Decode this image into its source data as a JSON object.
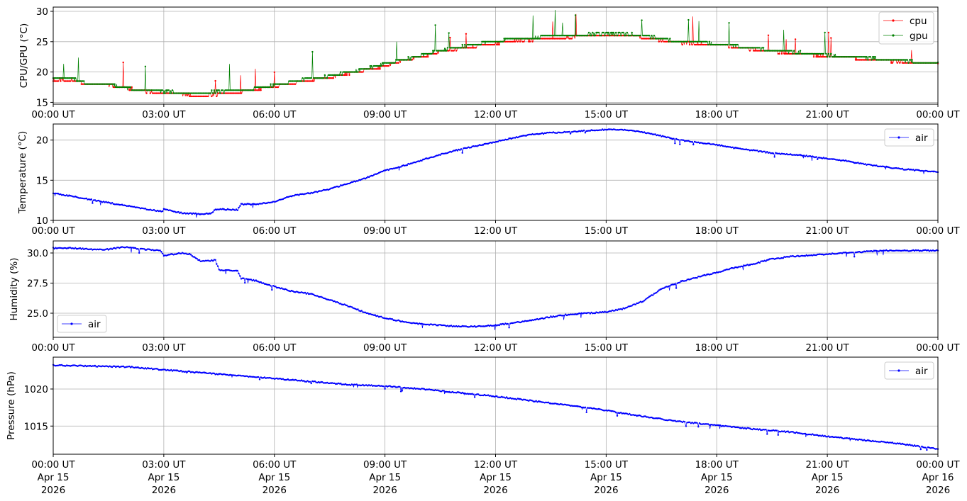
{
  "chart_data": [
    {
      "type": "line",
      "ylabel": "CPU/GPU (°C)",
      "ylim": [
        14.7,
        30.7
      ],
      "yticks": [
        15,
        20,
        25,
        30
      ],
      "ytick_labels": [
        "15",
        "20",
        "25",
        "30"
      ],
      "xlim": [
        0,
        24
      ],
      "xticks": [
        0,
        3,
        6,
        9,
        12,
        15,
        18,
        21,
        24
      ],
      "xtick_labels": [
        "00:00 UT",
        "03:00 UT",
        "06:00 UT",
        "09:00 UT",
        "12:00 UT",
        "15:00 UT",
        "18:00 UT",
        "21:00 UT",
        "00:00 UT"
      ],
      "grid": true,
      "legend": "top-right",
      "series": [
        {
          "name": "cpu",
          "color": "#ff0000",
          "x": [
            0,
            0.5,
            0.9,
            1.5,
            2.0,
            2.5,
            3.0,
            3.5,
            4.0,
            4.5,
            5.0,
            5.5,
            6.0,
            6.5,
            7.0,
            7.5,
            8.0,
            8.5,
            9.0,
            9.5,
            10.0,
            10.5,
            11.0,
            11.5,
            12.0,
            12.5,
            13.0,
            13.5,
            14.0,
            14.5,
            15.0,
            15.5,
            16.0,
            16.5,
            17.0,
            17.5,
            18.0,
            18.5,
            19.0,
            19.5,
            20.0,
            20.5,
            21.0,
            21.5,
            22.0,
            22.5,
            23.0,
            23.5,
            24
          ],
          "values": [
            18.7,
            18.7,
            18,
            17.8,
            17.3,
            16.8,
            16.6,
            16.3,
            16.1,
            16.3,
            16.6,
            17.1,
            17.6,
            18.2,
            18.7,
            19.1,
            19.8,
            20.3,
            21.0,
            21.9,
            22.5,
            23.3,
            23.8,
            24.3,
            24.7,
            25.2,
            25.3,
            25.6,
            25.7,
            26.0,
            26.1,
            26.1,
            25.7,
            25.2,
            24.8,
            24.7,
            24.5,
            24.1,
            23.7,
            23.4,
            23.1,
            22.9,
            22.6,
            22.4,
            22.1,
            21.9,
            21.7,
            21.4,
            21.4
          ]
        },
        {
          "name": "gpu",
          "color": "#008000",
          "x": [
            0,
            0.5,
            0.9,
            1.5,
            2.0,
            2.5,
            3.0,
            3.5,
            4.0,
            4.5,
            5.0,
            5.5,
            6.0,
            6.5,
            7.0,
            7.5,
            8.0,
            8.5,
            9.0,
            9.5,
            10.0,
            10.5,
            11.0,
            11.5,
            12.0,
            12.5,
            13.0,
            13.5,
            14.0,
            14.5,
            15.0,
            15.5,
            16.0,
            16.5,
            17.0,
            17.5,
            18.0,
            18.5,
            19.0,
            19.5,
            20.0,
            20.5,
            21.0,
            21.5,
            22.0,
            22.5,
            23.0,
            23.5,
            24
          ],
          "values": [
            19.0,
            19.0,
            18.1,
            18.0,
            17.3,
            16.9,
            16.8,
            16.6,
            16.5,
            16.8,
            16.9,
            17.3,
            17.8,
            18.4,
            19.0,
            19.3,
            20.0,
            20.5,
            21.4,
            22.0,
            22.7,
            23.6,
            24.1,
            24.6,
            25.0,
            25.5,
            25.7,
            25.9,
            26.0,
            26.2,
            26.3,
            26.3,
            26.0,
            25.5,
            25.0,
            24.9,
            24.6,
            24.3,
            23.9,
            23.6,
            23.3,
            23.1,
            22.8,
            22.6,
            22.3,
            22.1,
            21.9,
            21.6,
            21.6
          ]
        }
      ]
    },
    {
      "type": "line",
      "ylabel": "Temperature (°C)",
      "ylim": [
        10,
        22
      ],
      "yticks": [
        10,
        15,
        20
      ],
      "ytick_labels": [
        "10",
        "15",
        "20"
      ],
      "xlim": [
        0,
        24
      ],
      "xticks": [
        0,
        3,
        6,
        9,
        12,
        15,
        18,
        21,
        24
      ],
      "xtick_labels": [
        "00:00 UT",
        "03:00 UT",
        "06:00 UT",
        "09:00 UT",
        "12:00 UT",
        "15:00 UT",
        "18:00 UT",
        "21:00 UT",
        "00:00 UT"
      ],
      "grid": true,
      "legend": "top-right",
      "series": [
        {
          "name": "air",
          "color": "#0000ff",
          "x": [
            0,
            0.5,
            1.0,
            1.5,
            2.0,
            2.5,
            2.95,
            3.0,
            3.5,
            4.0,
            4.3,
            4.4,
            5.0,
            5.1,
            5.5,
            6.0,
            6.5,
            7.0,
            7.5,
            8.0,
            8.5,
            9.0,
            9.5,
            10.0,
            10.5,
            11.0,
            11.5,
            12.0,
            12.5,
            13.0,
            13.5,
            14.0,
            14.5,
            15.0,
            15.5,
            16.0,
            16.5,
            17.0,
            17.5,
            18.0,
            18.5,
            19.0,
            19.5,
            20.0,
            20.5,
            21.0,
            21.5,
            22.0,
            22.5,
            23.0,
            23.5,
            24
          ],
          "values": [
            13.4,
            13.0,
            12.6,
            12.2,
            11.8,
            11.4,
            11.1,
            11.4,
            10.9,
            10.8,
            10.9,
            11.4,
            11.3,
            12.0,
            12.0,
            12.3,
            13.1,
            13.4,
            13.9,
            14.6,
            15.3,
            16.2,
            16.8,
            17.5,
            18.2,
            18.8,
            19.3,
            19.8,
            20.3,
            20.7,
            20.9,
            21.0,
            21.2,
            21.3,
            21.3,
            21.0,
            20.5,
            20.0,
            19.7,
            19.4,
            19.0,
            18.7,
            18.4,
            18.2,
            18.0,
            17.7,
            17.4,
            17.0,
            16.7,
            16.4,
            16.2,
            16.0
          ]
        }
      ]
    },
    {
      "type": "line",
      "ylabel": "Humidity (%)",
      "ylim": [
        23,
        31
      ],
      "yticks": [
        25.0,
        27.5,
        30.0
      ],
      "ytick_labels": [
        "25.0",
        "27.5",
        "30.0"
      ],
      "xlim": [
        0,
        24
      ],
      "xticks": [
        0,
        3,
        6,
        9,
        12,
        15,
        18,
        21,
        24
      ],
      "xtick_labels": [
        "00:00 UT",
        "03:00 UT",
        "06:00 UT",
        "09:00 UT",
        "12:00 UT",
        "15:00 UT",
        "18:00 UT",
        "21:00 UT",
        "00:00 UT"
      ],
      "grid": true,
      "legend": "lower-left",
      "series": [
        {
          "name": "air",
          "color": "#0000ff",
          "x": [
            0,
            0.5,
            1.0,
            1.5,
            1.9,
            2.5,
            2.9,
            3.0,
            3.5,
            3.7,
            4.0,
            4.4,
            4.5,
            5.0,
            5.1,
            5.5,
            6.0,
            6.5,
            7.0,
            7.5,
            8.0,
            8.5,
            9.0,
            9.5,
            10.0,
            10.5,
            11.0,
            11.5,
            12.0,
            12.5,
            13.0,
            13.5,
            14.0,
            14.5,
            15.0,
            15.5,
            16.0,
            16.5,
            17.0,
            17.5,
            18.0,
            18.5,
            19.0,
            19.5,
            20.0,
            20.5,
            21.0,
            21.5,
            22.0,
            22.5,
            23.0,
            23.5,
            24
          ],
          "values": [
            30.4,
            30.4,
            30.3,
            30.3,
            30.5,
            30.3,
            30.2,
            29.8,
            30.0,
            29.9,
            29.3,
            29.4,
            28.6,
            28.5,
            27.9,
            27.7,
            27.2,
            26.8,
            26.6,
            26.1,
            25.6,
            25.0,
            24.6,
            24.3,
            24.1,
            24.0,
            23.9,
            23.9,
            24.0,
            24.2,
            24.4,
            24.7,
            24.9,
            25.0,
            25.1,
            25.4,
            26.0,
            27.0,
            27.6,
            28.0,
            28.4,
            28.8,
            29.1,
            29.5,
            29.7,
            29.8,
            29.9,
            30.0,
            30.1,
            30.2,
            30.2,
            30.2,
            30.2
          ]
        }
      ]
    },
    {
      "type": "line",
      "ylabel": "Pressure (hPa)",
      "ylim": [
        1011.2,
        1024.3
      ],
      "yticks": [
        1015,
        1020
      ],
      "ytick_labels": [
        "1015",
        "1020"
      ],
      "xlim": [
        0,
        24
      ],
      "xticks": [
        0,
        3,
        6,
        9,
        12,
        15,
        18,
        21,
        24
      ],
      "xtick_labels": [
        "00:00 UT",
        "03:00 UT",
        "06:00 UT",
        "09:00 UT",
        "12:00 UT",
        "15:00 UT",
        "18:00 UT",
        "21:00 UT",
        "00:00 UT"
      ],
      "xtick_labels_line2": [
        "Apr 15",
        "Apr 15",
        "Apr 15",
        "Apr 15",
        "Apr 15",
        "Apr 15",
        "Apr 15",
        "Apr 15",
        "Apr 16"
      ],
      "xtick_labels_line3": [
        "2026",
        "2026",
        "2026",
        "2026",
        "2026",
        "2026",
        "2026",
        "2026",
        "2026"
      ],
      "grid": true,
      "legend": "top-right",
      "series": [
        {
          "name": "air",
          "color": "#0000ff",
          "x": [
            0,
            1,
            2,
            3,
            4,
            5,
            6,
            7,
            8,
            9,
            10,
            11,
            12,
            13,
            14,
            15,
            16,
            17,
            18,
            19,
            20,
            21,
            22,
            23,
            24
          ],
          "values": [
            1023.2,
            1023.1,
            1023.0,
            1022.6,
            1022.2,
            1021.8,
            1021.4,
            1021.0,
            1020.6,
            1020.4,
            1020.0,
            1019.5,
            1019.0,
            1018.4,
            1017.8,
            1017.1,
            1016.3,
            1015.6,
            1015.1,
            1014.6,
            1014.2,
            1013.6,
            1013.1,
            1012.6,
            1011.9
          ]
        }
      ]
    }
  ]
}
